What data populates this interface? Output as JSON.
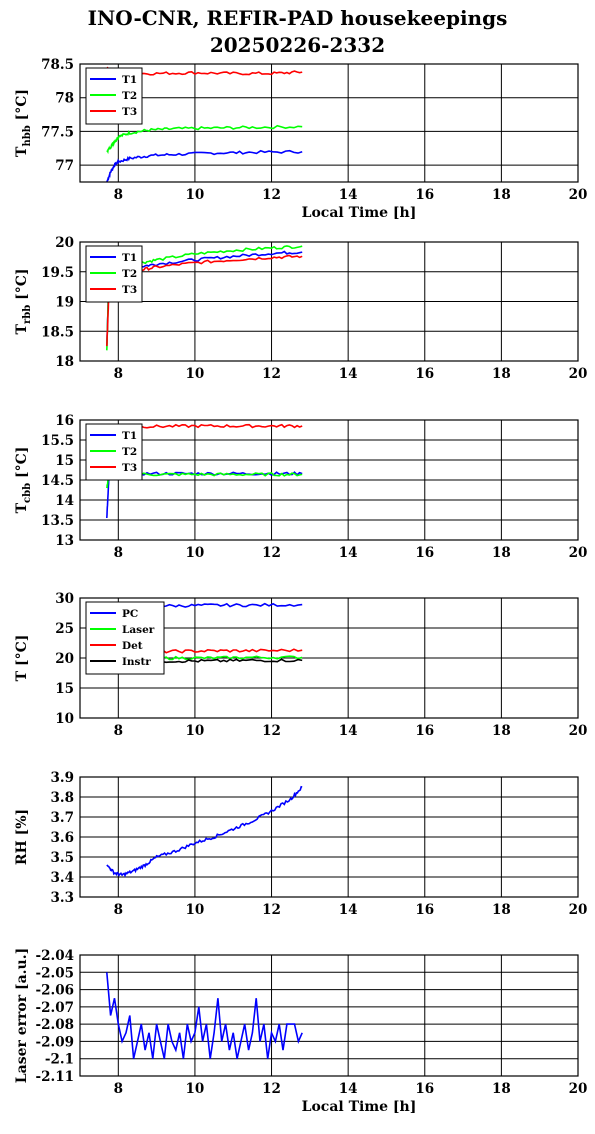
{
  "header": {
    "title_line1": "INO-CNR, REFIR-PAD housekeepings",
    "title_line2": "20250226-2332"
  },
  "chart_data": [
    {
      "type": "line",
      "ylabel": "T_hbb [°C]",
      "xlabel": "Local Time [h]",
      "xlim": [
        7,
        20
      ],
      "ylim": [
        76.75,
        78.5
      ],
      "xticks": [
        "8",
        "10",
        "12",
        "14",
        "16",
        "18",
        "20"
      ],
      "yticks": [
        "77",
        "77.5",
        "78",
        "78.5"
      ],
      "legend": "top-left",
      "grid": true,
      "series": [
        {
          "name": "T1",
          "color": "#0000ff",
          "x": [
            7.7,
            7.8,
            7.9,
            8.0,
            8.3,
            8.8,
            9.5,
            10.5,
            11.5,
            12.8
          ],
          "y": [
            76.75,
            76.9,
            77.0,
            77.05,
            77.1,
            77.14,
            77.16,
            77.18,
            77.19,
            77.2
          ]
        },
        {
          "name": "T2",
          "color": "#00ff00",
          "x": [
            7.7,
            7.8,
            7.9,
            8.0,
            8.3,
            8.8,
            9.5,
            10.5,
            11.5,
            12.8
          ],
          "y": [
            77.2,
            77.27,
            77.35,
            77.42,
            77.48,
            77.52,
            77.54,
            77.55,
            77.56,
            77.57
          ]
        },
        {
          "name": "T3",
          "color": "#ff0000",
          "x": [
            7.7,
            8.0,
            9.0,
            10.0,
            11.0,
            12.0,
            12.8
          ],
          "y": [
            78.45,
            78.36,
            78.36,
            78.37,
            78.36,
            78.36,
            78.38
          ]
        }
      ]
    },
    {
      "type": "line",
      "ylabel": "T_rbb [°C]",
      "xlabel": "",
      "xlim": [
        7,
        20
      ],
      "ylim": [
        18,
        20
      ],
      "xticks": [
        "8",
        "10",
        "12",
        "14",
        "16",
        "18",
        "20"
      ],
      "yticks": [
        "18",
        "18.5",
        "19",
        "19.5",
        "20"
      ],
      "legend": "top-left",
      "grid": true,
      "series": [
        {
          "name": "T1",
          "color": "#0000ff",
          "x": [
            7.7,
            7.75,
            8.0,
            8.5,
            9.0,
            10.0,
            11.0,
            12.0,
            12.8
          ],
          "y": [
            18.25,
            19.3,
            19.5,
            19.58,
            19.63,
            19.7,
            19.76,
            19.81,
            19.83
          ]
        },
        {
          "name": "T2",
          "color": "#00ff00",
          "x": [
            7.7,
            7.75,
            8.0,
            8.5,
            9.0,
            10.0,
            11.0,
            12.0,
            12.8
          ],
          "y": [
            18.18,
            19.35,
            19.55,
            19.64,
            19.7,
            19.8,
            19.86,
            19.9,
            19.93
          ]
        },
        {
          "name": "T3",
          "color": "#ff0000",
          "x": [
            7.7,
            7.75,
            8.0,
            8.5,
            9.0,
            10.0,
            11.0,
            12.0,
            12.8
          ],
          "y": [
            18.25,
            19.1,
            19.42,
            19.52,
            19.58,
            19.65,
            19.7,
            19.74,
            19.76
          ]
        }
      ]
    },
    {
      "type": "line",
      "ylabel": "T_cbb [°C]",
      "xlabel": "",
      "xlim": [
        7,
        20
      ],
      "ylim": [
        13,
        16
      ],
      "xticks": [
        "8",
        "10",
        "12",
        "14",
        "16",
        "18",
        "20"
      ],
      "yticks": [
        "13",
        "13.5",
        "14",
        "14.5",
        "15",
        "15.5",
        "16"
      ],
      "legend": "top-left",
      "grid": true,
      "series": [
        {
          "name": "T1",
          "color": "#0000ff",
          "x": [
            7.7,
            7.75,
            8.0,
            9.0,
            10.0,
            11.0,
            12.0,
            12.8
          ],
          "y": [
            13.55,
            14.5,
            14.66,
            14.66,
            14.66,
            14.66,
            14.66,
            14.66
          ]
        },
        {
          "name": "T2",
          "color": "#00ff00",
          "x": [
            7.7,
            7.75,
            8.0,
            9.0,
            10.0,
            11.0,
            12.0,
            12.8
          ],
          "y": [
            14.3,
            14.6,
            14.65,
            14.64,
            14.64,
            14.64,
            14.64,
            14.64
          ]
        },
        {
          "name": "T3",
          "color": "#ff0000",
          "x": [
            7.7,
            8.0,
            9.0,
            10.0,
            11.0,
            12.0,
            12.8
          ],
          "y": [
            15.85,
            15.84,
            15.84,
            15.85,
            15.85,
            15.85,
            15.85
          ]
        }
      ]
    },
    {
      "type": "line",
      "ylabel": "T [°C]",
      "xlabel": "",
      "xlim": [
        7,
        20
      ],
      "ylim": [
        10,
        30
      ],
      "xticks": [
        "8",
        "10",
        "12",
        "14",
        "16",
        "18",
        "20"
      ],
      "yticks": [
        "10",
        "15",
        "20",
        "25",
        "30"
      ],
      "legend": "top-left",
      "grid": true,
      "series": [
        {
          "name": "PC",
          "color": "#0000ff",
          "x": [
            7.7,
            8.5,
            9.5,
            10.5,
            11.5,
            12.8
          ],
          "y": [
            28.6,
            28.7,
            28.7,
            28.8,
            28.8,
            28.9
          ]
        },
        {
          "name": "Laser",
          "color": "#00ff00",
          "x": [
            7.7,
            8.5,
            9.5,
            10.5,
            11.5,
            12.8
          ],
          "y": [
            19.8,
            19.9,
            20.0,
            20.0,
            20.1,
            20.1
          ]
        },
        {
          "name": "Det",
          "color": "#ff0000",
          "x": [
            7.7,
            8.5,
            9.5,
            10.5,
            11.5,
            12.8
          ],
          "y": [
            21.0,
            21.0,
            21.1,
            21.2,
            21.2,
            21.3
          ]
        },
        {
          "name": "Instr",
          "color": "#000000",
          "x": [
            7.7,
            8.5,
            9.5,
            10.5,
            11.5,
            12.8
          ],
          "y": [
            19.4,
            19.4,
            19.5,
            19.5,
            19.6,
            19.6
          ]
        }
      ]
    },
    {
      "type": "line",
      "ylabel": "RH [%]",
      "xlabel": "",
      "xlim": [
        7,
        20
      ],
      "ylim": [
        3.3,
        3.9
      ],
      "xticks": [
        "8",
        "10",
        "12",
        "14",
        "16",
        "18",
        "20"
      ],
      "yticks": [
        "3.3",
        "3.4",
        "3.5",
        "3.6",
        "3.7",
        "3.8",
        "3.9"
      ],
      "legend": "none",
      "grid": true,
      "series": [
        {
          "color": "#0000ff",
          "x": [
            7.7,
            7.9,
            8.1,
            8.4,
            8.7,
            9.0,
            9.5,
            10.0,
            10.5,
            11.0,
            11.5,
            12.0,
            12.5,
            12.8
          ],
          "y": [
            3.46,
            3.42,
            3.41,
            3.43,
            3.46,
            3.5,
            3.53,
            3.57,
            3.6,
            3.64,
            3.68,
            3.73,
            3.79,
            3.85
          ]
        }
      ]
    },
    {
      "type": "line",
      "ylabel": "Laser error [a.u.]",
      "xlabel": "Local Time [h]",
      "xlim": [
        7,
        20
      ],
      "ylim": [
        -2.11,
        -2.04
      ],
      "xticks": [
        "8",
        "10",
        "12",
        "14",
        "16",
        "18",
        "20"
      ],
      "yticks": [
        "-2.04",
        "-2.05",
        "-2.06",
        "-2.07",
        "-2.08",
        "-2.09",
        "-2.1",
        "-2.11"
      ],
      "legend": "none",
      "grid": true,
      "series": [
        {
          "color": "#0000ff",
          "x": [
            7.7,
            7.8,
            7.9,
            8.0,
            8.1,
            8.2,
            8.3,
            8.4,
            8.5,
            8.6,
            8.7,
            8.8,
            8.9,
            9.0,
            9.1,
            9.2,
            9.3,
            9.4,
            9.5,
            9.6,
            9.7,
            9.8,
            9.9,
            10.0,
            10.1,
            10.2,
            10.3,
            10.4,
            10.5,
            10.6,
            10.7,
            10.8,
            10.9,
            11.0,
            11.1,
            11.2,
            11.3,
            11.4,
            11.5,
            11.6,
            11.7,
            11.8,
            11.9,
            12.0,
            12.1,
            12.2,
            12.3,
            12.4,
            12.5,
            12.6,
            12.7,
            12.8
          ],
          "y": [
            -2.05,
            -2.075,
            -2.065,
            -2.08,
            -2.09,
            -2.085,
            -2.075,
            -2.1,
            -2.09,
            -2.08,
            -2.095,
            -2.085,
            -2.1,
            -2.08,
            -2.09,
            -2.1,
            -2.08,
            -2.09,
            -2.095,
            -2.085,
            -2.1,
            -2.08,
            -2.09,
            -2.085,
            -2.07,
            -2.09,
            -2.08,
            -2.1,
            -2.085,
            -2.065,
            -2.09,
            -2.08,
            -2.095,
            -2.085,
            -2.1,
            -2.09,
            -2.08,
            -2.095,
            -2.085,
            -2.065,
            -2.09,
            -2.08,
            -2.1,
            -2.085,
            -2.09,
            -2.08,
            -2.095,
            -2.08,
            -2.08,
            -2.08,
            -2.09,
            -2.085
          ]
        }
      ]
    }
  ]
}
